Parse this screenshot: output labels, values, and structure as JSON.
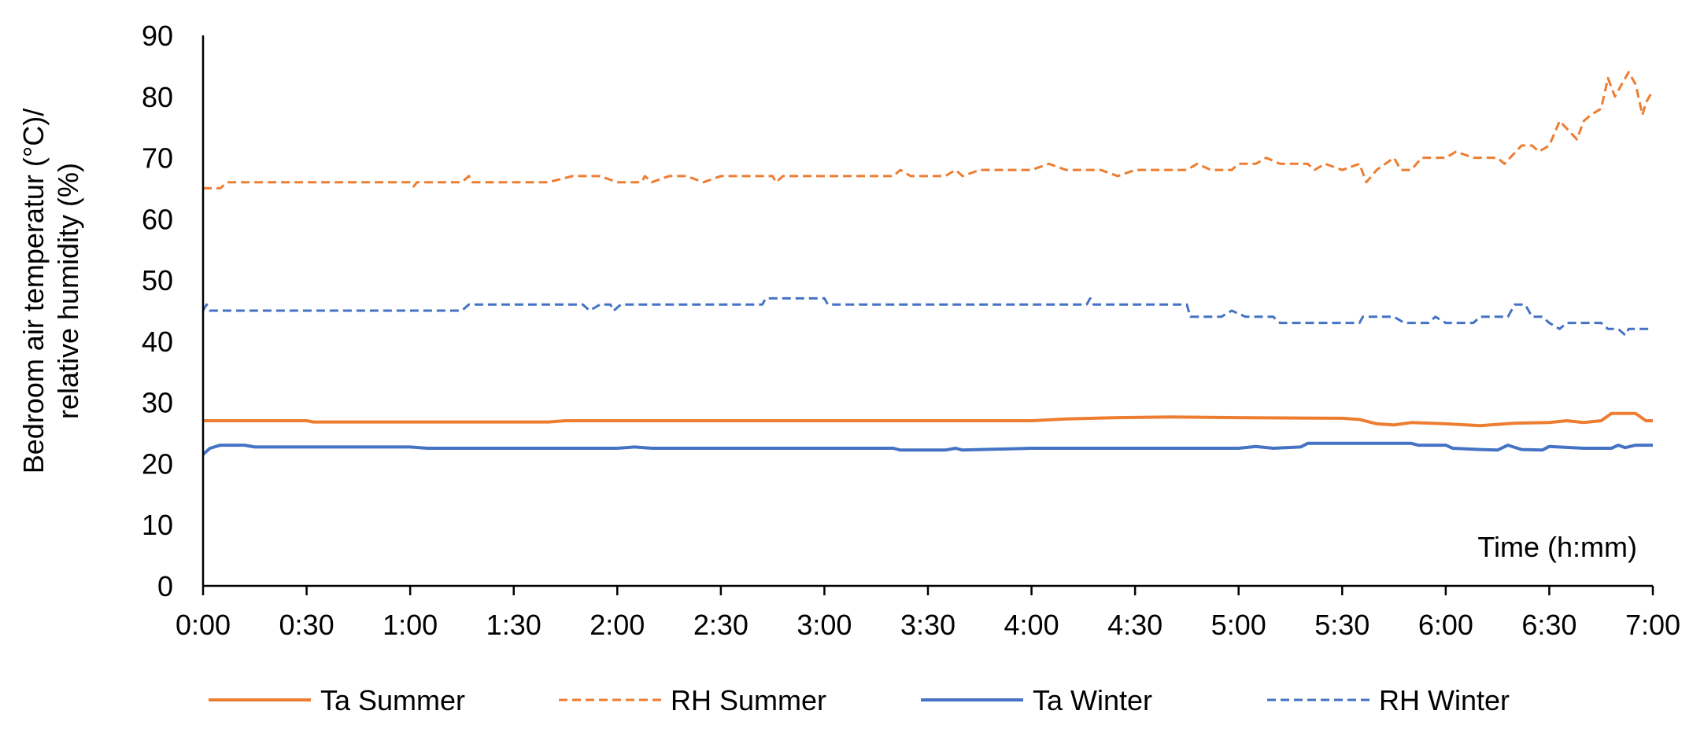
{
  "chart_data": {
    "type": "line",
    "title": "",
    "ylabel_lines": [
      "Bedroom air temperatur (°C)/",
      "relative humidity (%)"
    ],
    "xlabel": "Time (h:mm)",
    "ylim": [
      0,
      90
    ],
    "yticks": [
      0,
      10,
      20,
      30,
      40,
      50,
      60,
      70,
      80,
      90
    ],
    "xlim_minutes": [
      0,
      420
    ],
    "xticks": [
      {
        "m": 0,
        "label": "0:00"
      },
      {
        "m": 30,
        "label": "0:30"
      },
      {
        "m": 60,
        "label": "1:00"
      },
      {
        "m": 90,
        "label": "1:30"
      },
      {
        "m": 120,
        "label": "2:00"
      },
      {
        "m": 150,
        "label": "2:30"
      },
      {
        "m": 180,
        "label": "3:00"
      },
      {
        "m": 210,
        "label": "3:30"
      },
      {
        "m": 240,
        "label": "4:00"
      },
      {
        "m": 270,
        "label": "4:30"
      },
      {
        "m": 300,
        "label": "5:00"
      },
      {
        "m": 330,
        "label": "5:30"
      },
      {
        "m": 360,
        "label": "6:00"
      },
      {
        "m": 390,
        "label": "6:30"
      },
      {
        "m": 420,
        "label": "7:00"
      }
    ],
    "grid": false,
    "legend_position": "bottom",
    "series": [
      {
        "name": "Ta Summer",
        "color": "#ED7D31",
        "dash": "solid",
        "points": [
          [
            0,
            27
          ],
          [
            30,
            27
          ],
          [
            32,
            26.8
          ],
          [
            60,
            26.8
          ],
          [
            100,
            26.8
          ],
          [
            105,
            27
          ],
          [
            150,
            27
          ],
          [
            180,
            27
          ],
          [
            210,
            27
          ],
          [
            240,
            27
          ],
          [
            250,
            27.3
          ],
          [
            265,
            27.5
          ],
          [
            280,
            27.6
          ],
          [
            300,
            27.5
          ],
          [
            330,
            27.4
          ],
          [
            335,
            27.2
          ],
          [
            340,
            26.5
          ],
          [
            345,
            26.3
          ],
          [
            350,
            26.7
          ],
          [
            360,
            26.5
          ],
          [
            370,
            26.2
          ],
          [
            380,
            26.6
          ],
          [
            390,
            26.7
          ],
          [
            395,
            27
          ],
          [
            400,
            26.7
          ],
          [
            405,
            27
          ],
          [
            408,
            28.2
          ],
          [
            415,
            28.2
          ],
          [
            418,
            27
          ],
          [
            420,
            27
          ]
        ]
      },
      {
        "name": "RH Summer",
        "color": "#ED7D31",
        "dash": "dashed",
        "points": [
          [
            0,
            65
          ],
          [
            5,
            65
          ],
          [
            7,
            66
          ],
          [
            30,
            66
          ],
          [
            60,
            66
          ],
          [
            61,
            65.3
          ],
          [
            62,
            66
          ],
          [
            75,
            66
          ],
          [
            77,
            67
          ],
          [
            78,
            66
          ],
          [
            100,
            66
          ],
          [
            107,
            67
          ],
          [
            115,
            67
          ],
          [
            120,
            66
          ],
          [
            127,
            66
          ],
          [
            128,
            67
          ],
          [
            130,
            66
          ],
          [
            135,
            67
          ],
          [
            140,
            67
          ],
          [
            145,
            66
          ],
          [
            150,
            67
          ],
          [
            165,
            67
          ],
          [
            166,
            66
          ],
          [
            168,
            67
          ],
          [
            200,
            67
          ],
          [
            202,
            68
          ],
          [
            205,
            67
          ],
          [
            215,
            67
          ],
          [
            218,
            68
          ],
          [
            220,
            67
          ],
          [
            225,
            68
          ],
          [
            240,
            68
          ],
          [
            245,
            69
          ],
          [
            250,
            68
          ],
          [
            260,
            68
          ],
          [
            265,
            67
          ],
          [
            270,
            68
          ],
          [
            285,
            68
          ],
          [
            288,
            69
          ],
          [
            292,
            68
          ],
          [
            298,
            68
          ],
          [
            300,
            69
          ],
          [
            305,
            69
          ],
          [
            308,
            70
          ],
          [
            312,
            69
          ],
          [
            320,
            69
          ],
          [
            322,
            68
          ],
          [
            325,
            69
          ],
          [
            330,
            68
          ],
          [
            335,
            69
          ],
          [
            337,
            66
          ],
          [
            340,
            68
          ],
          [
            345,
            70
          ],
          [
            347,
            68
          ],
          [
            350,
            68
          ],
          [
            353,
            70
          ],
          [
            360,
            70
          ],
          [
            363,
            71
          ],
          [
            368,
            70
          ],
          [
            375,
            70
          ],
          [
            377,
            69
          ],
          [
            382,
            72
          ],
          [
            385,
            72
          ],
          [
            387,
            71
          ],
          [
            390,
            72
          ],
          [
            393,
            76
          ],
          [
            398,
            73
          ],
          [
            400,
            76
          ],
          [
            402,
            77
          ],
          [
            405,
            78
          ],
          [
            407,
            83
          ],
          [
            409,
            80
          ],
          [
            411,
            82
          ],
          [
            413,
            84
          ],
          [
            415,
            82
          ],
          [
            417,
            77
          ],
          [
            418,
            79
          ],
          [
            420,
            81
          ]
        ]
      },
      {
        "name": "Ta Winter",
        "color": "#4472C4",
        "dash": "solid",
        "points": [
          [
            0,
            21.5
          ],
          [
            2,
            22.5
          ],
          [
            5,
            23
          ],
          [
            12,
            23
          ],
          [
            15,
            22.7
          ],
          [
            60,
            22.7
          ],
          [
            65,
            22.5
          ],
          [
            120,
            22.5
          ],
          [
            125,
            22.7
          ],
          [
            130,
            22.5
          ],
          [
            180,
            22.5
          ],
          [
            200,
            22.5
          ],
          [
            202,
            22.2
          ],
          [
            215,
            22.2
          ],
          [
            218,
            22.5
          ],
          [
            220,
            22.2
          ],
          [
            240,
            22.5
          ],
          [
            300,
            22.5
          ],
          [
            305,
            22.8
          ],
          [
            310,
            22.5
          ],
          [
            318,
            22.7
          ],
          [
            320,
            23.3
          ],
          [
            350,
            23.3
          ],
          [
            352,
            23
          ],
          [
            360,
            23
          ],
          [
            362,
            22.5
          ],
          [
            370,
            22.3
          ],
          [
            375,
            22.2
          ],
          [
            378,
            23
          ],
          [
            382,
            22.3
          ],
          [
            388,
            22.2
          ],
          [
            390,
            22.8
          ],
          [
            400,
            22.5
          ],
          [
            408,
            22.5
          ],
          [
            410,
            23
          ],
          [
            412,
            22.6
          ],
          [
            415,
            23
          ],
          [
            420,
            23
          ]
        ]
      },
      {
        "name": "RH Winter",
        "color": "#4472C4",
        "dash": "dashed",
        "points": [
          [
            0,
            45
          ],
          [
            1,
            46
          ],
          [
            2,
            45
          ],
          [
            75,
            45
          ],
          [
            77,
            46
          ],
          [
            110,
            46
          ],
          [
            112,
            45
          ],
          [
            115,
            46
          ],
          [
            118,
            46
          ],
          [
            119,
            45
          ],
          [
            121,
            46
          ],
          [
            140,
            46
          ],
          [
            162,
            46
          ],
          [
            163,
            47
          ],
          [
            180,
            47
          ],
          [
            181,
            46
          ],
          [
            230,
            46
          ],
          [
            256,
            46
          ],
          [
            257,
            47
          ],
          [
            258,
            46
          ],
          [
            260,
            46
          ],
          [
            285,
            46
          ],
          [
            286,
            44
          ],
          [
            295,
            44
          ],
          [
            298,
            45
          ],
          [
            302,
            44
          ],
          [
            310,
            44
          ],
          [
            312,
            43
          ],
          [
            318,
            43
          ],
          [
            335,
            43
          ],
          [
            336,
            44
          ],
          [
            345,
            44
          ],
          [
            348,
            43
          ],
          [
            355,
            43
          ],
          [
            357,
            44
          ],
          [
            360,
            43
          ],
          [
            368,
            43
          ],
          [
            370,
            44
          ],
          [
            378,
            44
          ],
          [
            380,
            46
          ],
          [
            383,
            46
          ],
          [
            385,
            44
          ],
          [
            388,
            44
          ],
          [
            390,
            43
          ],
          [
            393,
            42
          ],
          [
            395,
            43
          ],
          [
            405,
            43
          ],
          [
            407,
            42
          ],
          [
            410,
            42
          ],
          [
            412,
            41
          ],
          [
            413,
            42
          ],
          [
            420,
            42
          ]
        ]
      }
    ]
  }
}
